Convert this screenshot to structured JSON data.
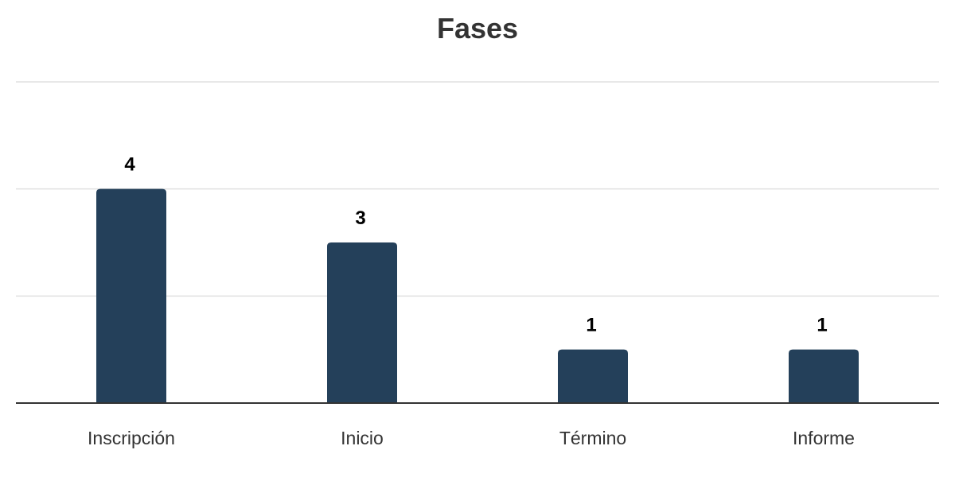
{
  "chart_data": {
    "type": "bar",
    "title": "Fases",
    "categories": [
      "Inscripción",
      "Inicio",
      "Término",
      "Informe"
    ],
    "values": [
      4,
      3,
      1,
      1
    ],
    "data_labels": [
      "4",
      "3",
      "1",
      "1"
    ],
    "ylim": [
      0,
      6
    ],
    "gridlines": [
      2,
      4,
      6
    ],
    "grid": true,
    "show_y_tick_labels": false,
    "legend": "none",
    "xlabel": "",
    "ylabel": ""
  },
  "colors": {
    "bar": "#24405a",
    "gridline": "#e0e0e0",
    "axis": "#333333",
    "title": "#333333",
    "category_label": "#333333",
    "data_label": "#000000"
  }
}
